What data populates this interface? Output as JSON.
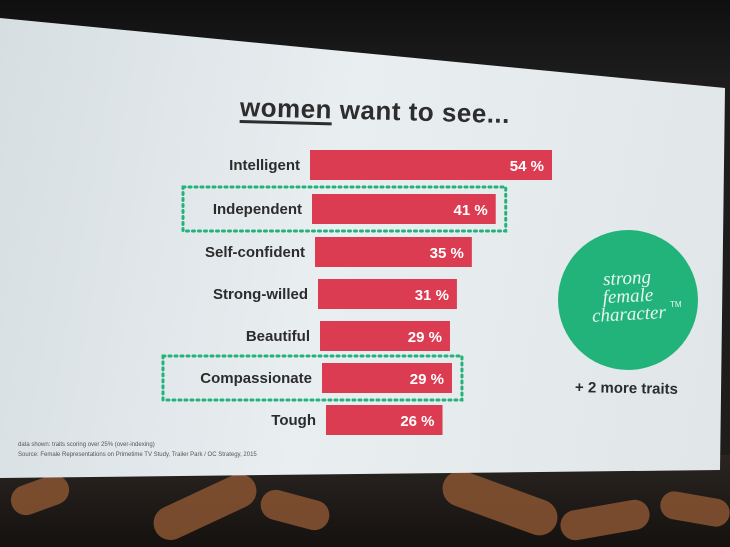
{
  "slide": {
    "title_emph": "women",
    "title_rest": " want to see...",
    "badge_text": "strong\nfemale\ncharacter",
    "badge_tm": "TM",
    "more_traits": "+ 2 more traits",
    "footnote_1": "data shown: traits scoring over 25% (over-indexing)",
    "footnote_2": "Source: Female Representations on Primetime TV Study, Trailer Park / OC Strategy, 2015"
  },
  "colors": {
    "bar": "#dc3c51",
    "highlight": "#22b37a",
    "badge": "#22b37a"
  },
  "chart_data": {
    "type": "bar",
    "orientation": "horizontal",
    "title": "women want to see...",
    "categories": [
      "Intelligent",
      "Independent",
      "Self-confident",
      "Strong-willed",
      "Beautiful",
      "Compassionate",
      "Tough"
    ],
    "values": [
      54,
      41,
      35,
      31,
      29,
      29,
      26
    ],
    "value_labels": [
      "54 %",
      "41 %",
      "35 %",
      "31 %",
      "29 %",
      "29 %",
      "26 %"
    ],
    "highlighted": [
      "Independent",
      "Compassionate"
    ],
    "xlim": [
      0,
      54
    ],
    "grid": false,
    "legend": "none"
  }
}
